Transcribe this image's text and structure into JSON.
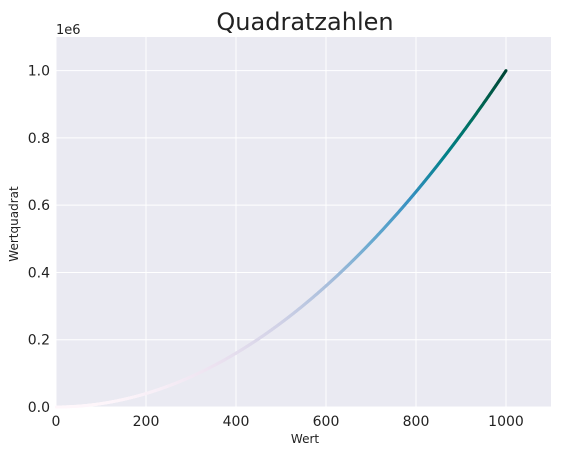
{
  "chart_data": {
    "type": "scatter",
    "title": "Quadratzahlen",
    "xlabel": "Wert",
    "ylabel": "Wertquadrat",
    "y_offset_label": "1e6",
    "xlim": [
      0,
      1100
    ],
    "ylim": [
      0,
      1.1
    ],
    "xticks": [
      0,
      200,
      400,
      600,
      800,
      1000
    ],
    "xtick_labels": [
      "0",
      "200",
      "400",
      "600",
      "800",
      "1000"
    ],
    "yticks": [
      0.0,
      0.2,
      0.4,
      0.6,
      0.8,
      1.0
    ],
    "ytick_labels": [
      "0.0",
      "0.2",
      "0.4",
      "0.6",
      "0.8",
      "1.0"
    ],
    "grid": true,
    "colormap": "PuBuGn",
    "series": [
      {
        "x_start": 1,
        "x_end": 1000,
        "formula": "y = x^2 / 1e6"
      }
    ],
    "colors": {
      "plot_bg": "#eaeaf2",
      "grid": "#ffffff",
      "cmap_stops": [
        "#fff7fb",
        "#ece2f0",
        "#d0d1e6",
        "#a6bddb",
        "#67a9cf",
        "#3690c0",
        "#02818a",
        "#016c59",
        "#014636"
      ]
    }
  }
}
